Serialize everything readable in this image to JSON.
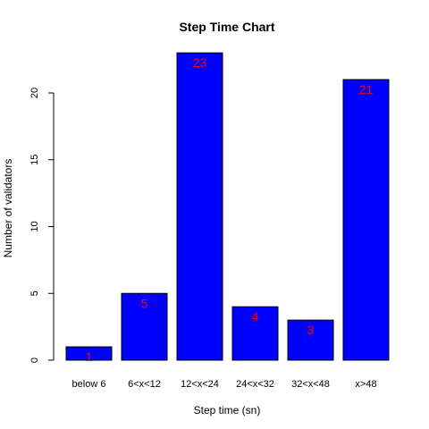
{
  "chart_data": {
    "type": "bar",
    "title": "Step Time Chart",
    "xlabel": "Step time (sn)",
    "ylabel": "Number of validators",
    "categories": [
      "below 6",
      "6<x<12",
      "12<x<24",
      "24<x<32",
      "32<x<48",
      "x>48"
    ],
    "values": [
      1,
      5,
      23,
      4,
      3,
      21
    ],
    "data_labels": [
      "1",
      "5",
      "23",
      "4",
      "3",
      "21"
    ],
    "y_ticks": [
      0,
      5,
      10,
      15,
      20
    ],
    "ylim": [
      0,
      23
    ],
    "grid": false,
    "legend": "none",
    "colors": {
      "bar_fill": "#0000ff",
      "bar_stroke": "#000000",
      "data_label": "#ff0000"
    }
  }
}
